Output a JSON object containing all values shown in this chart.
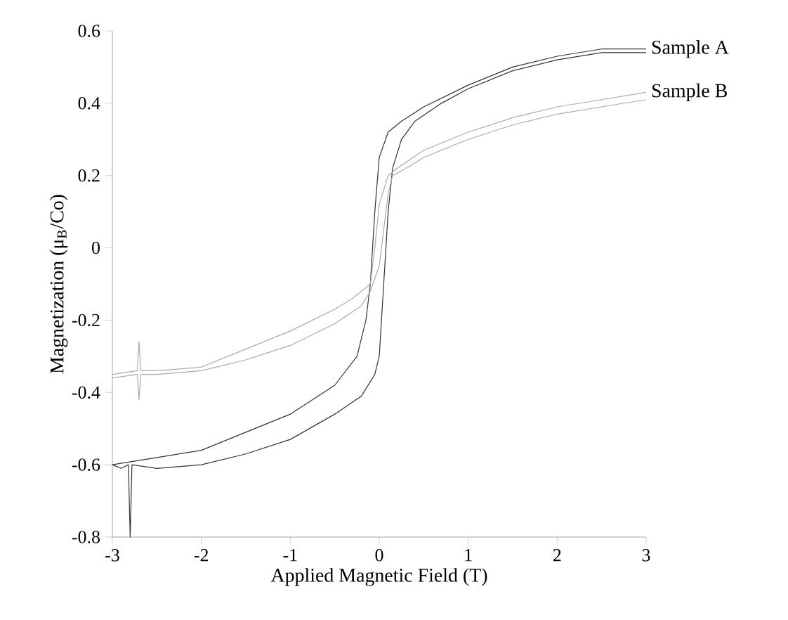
{
  "chart_data": {
    "type": "line",
    "xlabel": "Applied Magnetic Field  (T)",
    "ylabel": "Magnetization (μ$_{B}$/Co)",
    "xlim": [
      -3,
      3
    ],
    "ylim": [
      -0.8,
      0.6
    ],
    "xticks": [
      -3,
      -2,
      -1,
      0,
      1,
      2,
      3
    ],
    "yticks": [
      -0.8,
      -0.6,
      -0.4,
      -0.2,
      0,
      0.2,
      0.4,
      0.6
    ],
    "grid": false,
    "legend": false,
    "marker": "none",
    "line_style": "solid",
    "series": [
      {
        "name": "Sample A",
        "color": "#333333",
        "x": [
          -3,
          -2.5,
          -2,
          -1.5,
          -1,
          -0.5,
          -0.25,
          -0.15,
          -0.1,
          -0.05,
          0,
          0.1,
          0.25,
          0.5,
          1,
          1.5,
          2,
          2.5,
          3
        ],
        "values": [
          -0.6,
          -0.58,
          -0.56,
          -0.51,
          -0.46,
          -0.38,
          -0.3,
          -0.2,
          -0.1,
          0.1,
          0.25,
          0.32,
          0.35,
          0.39,
          0.45,
          0.5,
          0.53,
          0.55,
          0.55
        ]
      },
      {
        "color": "#333333",
        "x": [
          -3,
          -2.9,
          -2.82,
          -2.8,
          -2.78,
          -2.5,
          -2,
          -1.5,
          -1,
          -0.5,
          -0.2,
          -0.05,
          0,
          0.05,
          0.1,
          0.15,
          0.25,
          0.4,
          0.7,
          1,
          1.5,
          2,
          2.5,
          3
        ],
        "values": [
          -0.6,
          -0.61,
          -0.6,
          -0.8,
          -0.6,
          -0.61,
          -0.6,
          -0.57,
          -0.53,
          -0.46,
          -0.41,
          -0.35,
          -0.3,
          -0.1,
          0.1,
          0.22,
          0.3,
          0.35,
          0.4,
          0.44,
          0.49,
          0.52,
          0.54,
          0.54
        ]
      },
      {
        "name": "Sample B",
        "color": "#aaaaaa",
        "x": [
          -3,
          -2.72,
          -2.7,
          -2.68,
          -2.5,
          -2,
          -1.5,
          -1,
          -0.5,
          -0.3,
          -0.1,
          -0.05,
          0,
          0.1,
          0.2,
          0.5,
          1,
          1.5,
          2,
          2.5,
          3
        ],
        "values": [
          -0.35,
          -0.34,
          -0.26,
          -0.34,
          -0.34,
          -0.33,
          -0.28,
          -0.23,
          -0.17,
          -0.14,
          -0.1,
          0,
          0.12,
          0.2,
          0.22,
          0.27,
          0.32,
          0.36,
          0.39,
          0.41,
          0.43
        ]
      },
      {
        "color": "#aaaaaa",
        "x": [
          -3,
          -2.72,
          -2.7,
          -2.68,
          -2.5,
          -2,
          -1.5,
          -1,
          -0.5,
          -0.2,
          -0.1,
          0,
          0.05,
          0.1,
          0.15,
          0.3,
          0.5,
          1,
          1.5,
          2,
          2.5,
          3
        ],
        "values": [
          -0.36,
          -0.35,
          -0.42,
          -0.35,
          -0.35,
          -0.34,
          -0.31,
          -0.27,
          -0.21,
          -0.16,
          -0.12,
          -0.05,
          0.05,
          0.15,
          0.2,
          0.22,
          0.25,
          0.3,
          0.34,
          0.37,
          0.39,
          0.41
        ]
      }
    ]
  }
}
